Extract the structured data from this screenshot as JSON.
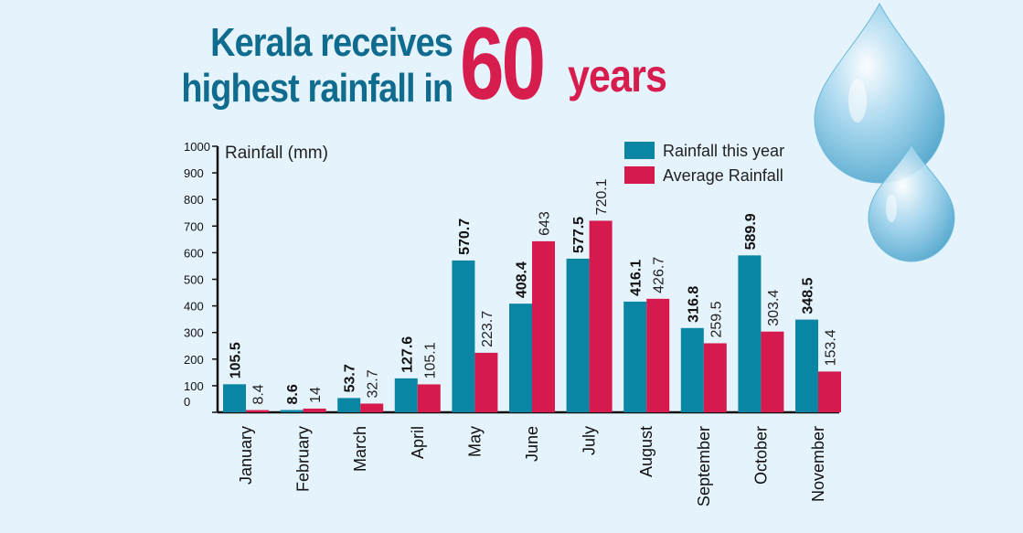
{
  "title": {
    "line1": "Kerala receives",
    "line2": "highest rainfall in",
    "number": "60",
    "suffix": "years"
  },
  "chart_data": {
    "type": "bar",
    "ylabel": "Rainfall (mm)",
    "ylim": [
      0,
      1000
    ],
    "yticks": [
      0,
      100,
      200,
      300,
      400,
      500,
      600,
      700,
      800,
      900,
      1000
    ],
    "categories": [
      "January",
      "February",
      "March",
      "April",
      "May",
      "June",
      "July",
      "August",
      "September",
      "October",
      "November"
    ],
    "series": [
      {
        "name": "Rainfall this year",
        "color": "#0a86a4",
        "values": [
          105.5,
          8.6,
          53.7,
          127.6,
          570.7,
          408.4,
          577.5,
          416.1,
          316.8,
          589.9,
          348.5
        ],
        "labels": [
          "105.5",
          "8.6",
          "53.7",
          "127.6",
          "570.7",
          "408.4",
          "577.5",
          "416.1",
          "316.8",
          "589.9",
          "348.5"
        ]
      },
      {
        "name": "Average Rainfall",
        "color": "#d71a4d",
        "values": [
          8.4,
          14,
          32.7,
          105.1,
          223.7,
          643,
          720.1,
          426.7,
          259.5,
          303.4,
          153.4
        ],
        "labels": [
          "8.4",
          "14",
          "32.7",
          "105.1",
          "223.7",
          "643",
          "720.1",
          "426.7",
          "259.5",
          "303.4",
          "153.4"
        ]
      }
    ],
    "legend": "top-right",
    "grid": false
  },
  "decor": {
    "drop_colors": [
      "#bfe3f3",
      "#7cc3e2",
      "#2f8fb8"
    ]
  }
}
